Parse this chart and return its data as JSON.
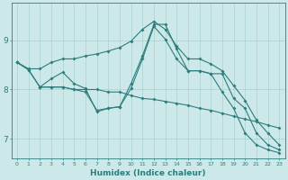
{
  "xlabel": "Humidex (Indice chaleur)",
  "bg_color": "#cce8e8",
  "line_color": "#2d7d7d",
  "grid_color": "#aad0d0",
  "xlim": [
    -0.5,
    23.5
  ],
  "ylim": [
    6.6,
    9.75
  ],
  "yticks": [
    7,
    8,
    9
  ],
  "xticks": [
    0,
    1,
    2,
    3,
    4,
    5,
    6,
    7,
    8,
    9,
    10,
    11,
    12,
    13,
    14,
    15,
    16,
    17,
    18,
    19,
    20,
    21,
    22,
    23
  ],
  "line1_x": [
    0,
    1,
    2,
    3,
    4,
    5,
    6,
    7,
    8,
    9,
    10,
    11,
    12,
    13,
    14,
    15,
    16,
    17,
    18,
    19,
    20,
    21,
    22,
    23
  ],
  "line1_y": [
    8.55,
    8.42,
    8.42,
    8.55,
    8.62,
    8.62,
    8.68,
    8.72,
    8.78,
    8.85,
    8.98,
    9.22,
    9.38,
    9.22,
    8.88,
    8.62,
    8.62,
    8.52,
    8.38,
    8.08,
    7.78,
    7.38,
    7.12,
    6.88
  ],
  "line2_x": [
    0,
    1,
    2,
    3,
    4,
    5,
    6,
    7,
    8,
    9,
    10,
    11,
    12,
    13,
    14,
    15,
    16,
    17,
    18,
    19,
    20,
    21,
    22,
    23
  ],
  "line2_y": [
    8.55,
    8.4,
    8.05,
    8.05,
    8.05,
    8.0,
    8.0,
    8.0,
    7.95,
    7.95,
    7.88,
    7.82,
    7.8,
    7.76,
    7.72,
    7.68,
    7.62,
    7.58,
    7.52,
    7.46,
    7.4,
    7.35,
    7.28,
    7.22
  ],
  "line3_x": [
    2,
    3,
    4,
    5,
    6,
    7,
    8,
    9,
    10,
    11,
    12,
    13,
    14,
    15,
    16,
    17,
    18,
    19,
    20,
    21,
    22,
    23
  ],
  "line3_y": [
    8.05,
    8.22,
    8.35,
    8.12,
    8.02,
    7.55,
    7.62,
    7.65,
    8.12,
    8.68,
    9.32,
    9.32,
    8.82,
    8.38,
    8.38,
    8.32,
    8.32,
    7.82,
    7.62,
    7.12,
    6.88,
    6.78
  ],
  "line4_x": [
    0,
    1,
    2,
    3,
    4,
    5,
    6,
    7,
    8,
    9,
    10,
    11,
    12,
    13,
    14,
    15,
    16,
    17,
    18,
    19,
    20,
    21,
    22,
    23
  ],
  "line4_y": [
    8.55,
    8.4,
    8.05,
    8.05,
    8.05,
    8.0,
    7.95,
    7.58,
    7.62,
    7.65,
    8.02,
    8.62,
    9.28,
    9.02,
    8.62,
    8.38,
    8.38,
    8.32,
    7.95,
    7.62,
    7.12,
    6.88,
    6.78,
    6.72
  ]
}
